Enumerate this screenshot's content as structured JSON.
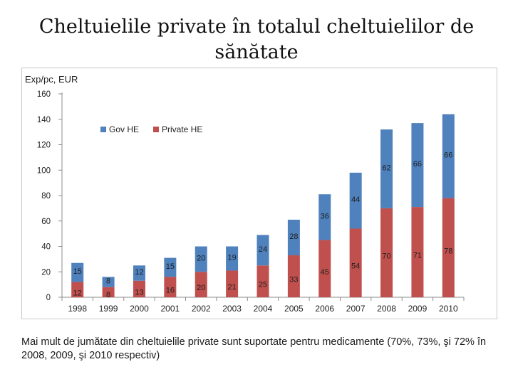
{
  "title": "Cheltuielile private în totalul cheltuielilor de sănătate",
  "caption": "Mai mult de jumătate din cheltuielile private sunt suportate pentru medicamente (70%, 73%, şi 72% în 2008, 2009, şi 2010 respectiv)",
  "chart_data": {
    "type": "bar",
    "stacked": true,
    "ylabel": "Exp/pc, EUR",
    "ylim": [
      0,
      160
    ],
    "yticks": [
      0,
      20,
      40,
      60,
      80,
      100,
      120,
      140,
      160
    ],
    "legend_position": "top-left",
    "categories": [
      "1998",
      "1999",
      "2000",
      "2001",
      "2002",
      "2003",
      "2004",
      "2005",
      "2006",
      "2007",
      "2008",
      "2009",
      "2010"
    ],
    "series": [
      {
        "name": "Private HE",
        "color": "#c0504d",
        "values": [
          12,
          8,
          13,
          16,
          20,
          21,
          25,
          33,
          45,
          54,
          70,
          71,
          78
        ]
      },
      {
        "name": "Gov HE",
        "color": "#4f81bd",
        "values": [
          15,
          8,
          12,
          15,
          20,
          19,
          24,
          28,
          36,
          44,
          62,
          66,
          66
        ]
      }
    ],
    "legend_order": [
      "Gov HE",
      "Private HE"
    ]
  }
}
